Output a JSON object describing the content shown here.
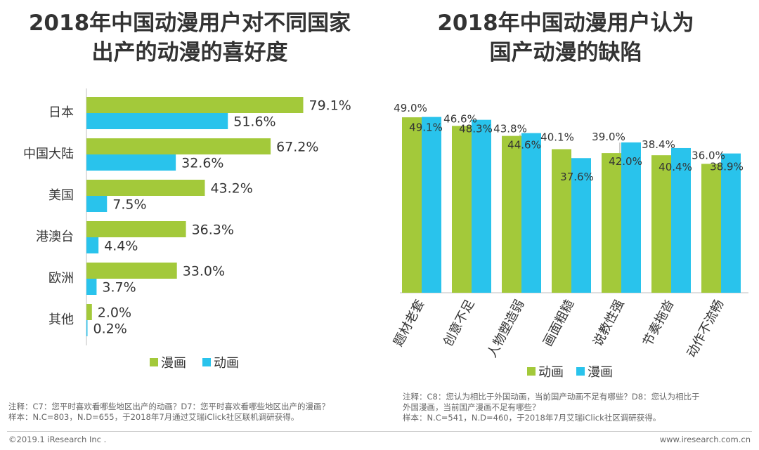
{
  "left": {
    "title_line1": "2018年中国动漫用户对不同国家",
    "title_line2": "出产的动漫的喜好度",
    "note_line1": "注释：C7：您平时喜欢看哪些地区出产的动画？D7：您平时喜欢看哪些地区出产的漫画？",
    "note_line2": "样本：N.C=803，N.D=655，于2018年7月通过艾瑞iClick社区联机调研获得。"
  },
  "right": {
    "title_line1": "2018年中国动漫用户认为",
    "title_line2": "国产动漫的缺陷",
    "note_line1": "注释：C8：您认为相比于外国动画，当前国产动画不足有哪些？D8：您认为相比于",
    "note_line2": "外国漫画，当前国产漫画不足有哪些？",
    "note_line3": "样本：N.C=541，N.D=460，于2018年7月艾瑞iClick社区调研获得。"
  },
  "footer": {
    "copyright": "©2019.1 iResearch Inc .",
    "website": "www.iresearch.com.cn"
  },
  "colors": {
    "green": "#a3c93a",
    "blue": "#29c3ec"
  },
  "chart_data": [
    {
      "type": "bar",
      "orientation": "horizontal",
      "title": "2018年中国动漫用户对不同国家出产的动漫的喜好度",
      "categories": [
        "日本",
        "中国大陆",
        "美国",
        "港澳台",
        "欧洲",
        "其他"
      ],
      "series": [
        {
          "name": "漫画",
          "color": "#a3c93a",
          "values": [
            79.1,
            67.2,
            43.2,
            36.3,
            33.0,
            2.0
          ]
        },
        {
          "name": "动画",
          "color": "#29c3ec",
          "values": [
            51.6,
            32.6,
            7.5,
            4.4,
            3.7,
            0.2
          ]
        }
      ],
      "value_suffix": "%",
      "legend": "bottom",
      "xlim": [
        0,
        100
      ]
    },
    {
      "type": "bar",
      "orientation": "vertical",
      "title": "2018年中国动漫用户认为国产动漫的缺陷",
      "categories": [
        "题材老套",
        "创意不足",
        "人物塑造弱",
        "画面粗糙",
        "说教性强",
        "节奏拖沓",
        "动作不流畅"
      ],
      "series": [
        {
          "name": "动画",
          "color": "#a3c93a",
          "values": [
            49.0,
            46.6,
            43.8,
            40.1,
            39.0,
            38.4,
            36.0
          ]
        },
        {
          "name": "漫画",
          "color": "#29c3ec",
          "values": [
            49.1,
            48.3,
            44.6,
            37.6,
            42.0,
            40.4,
            38.9
          ]
        }
      ],
      "value_suffix": "%",
      "legend": "bottom",
      "ylim": [
        0,
        60
      ]
    }
  ]
}
